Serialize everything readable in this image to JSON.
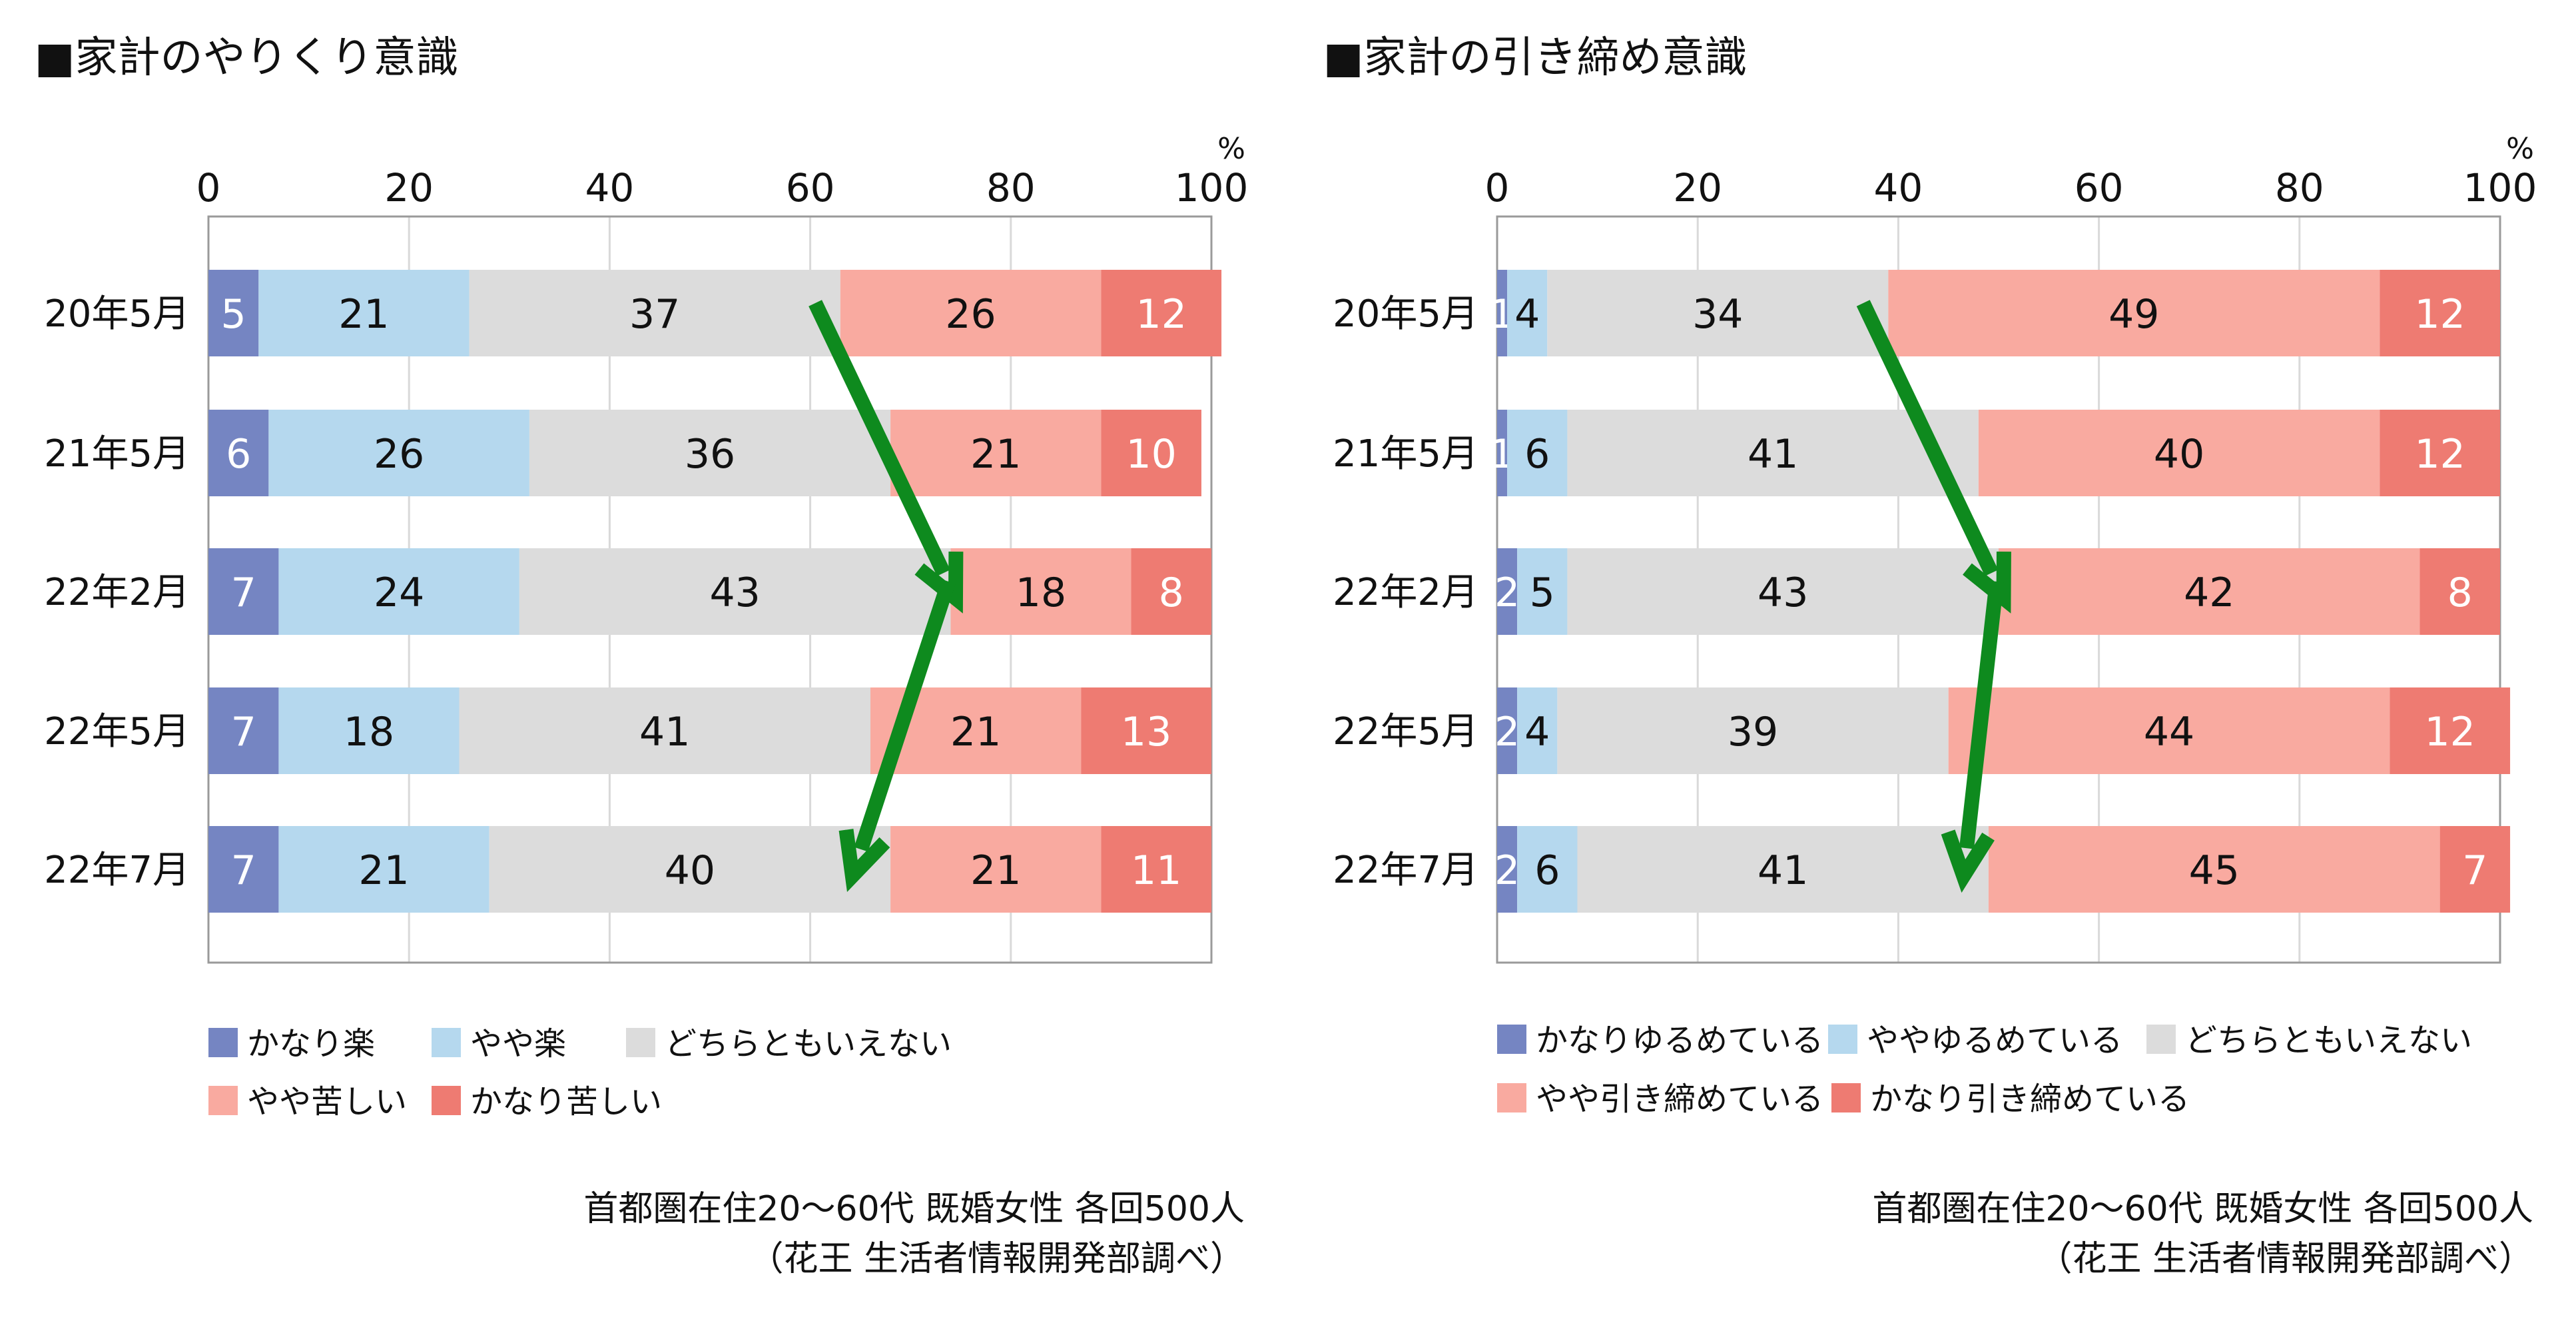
{
  "charts_meta": [
    {
      "title": "■家計のやりくり意識",
      "percent_unit": "%",
      "legend": [
        "かなり楽",
        "やや楽",
        "どちらともいえない",
        "やや苦しい",
        "かなり苦しい"
      ],
      "note_line1": "首都圏在住20～60代 既婚女性 各回500人",
      "note_line2": "（花王 生活者情報開発部調べ）"
    },
    {
      "title": "■家計の引き締め意識",
      "percent_unit": "%",
      "legend": [
        "かなりゆるめている",
        "ややゆるめている",
        "どちらともいえない",
        "やや引き締めている",
        "かなり引き締めている"
      ],
      "note_line1": "首都圏在住20～60代 既婚女性 各回500人",
      "note_line2": "（花王 生活者情報開発部調べ）"
    }
  ],
  "colors": {
    "segments": [
      "#7585c2",
      "#b5d8ee",
      "#dcdcdc",
      "#f9aaa0",
      "#ee7b72"
    ],
    "arrow": "#0e8a1e",
    "axis": "#9a9a9a",
    "grid": "#d9d9d9",
    "text": "#111111",
    "label_on_dark": "#ffffff"
  },
  "chart_data": [
    {
      "type": "bar",
      "orientation": "horizontal",
      "stacked": true,
      "title": "■家計のやりくり意識",
      "xlim": [
        0,
        100
      ],
      "xticks": [
        0,
        20,
        40,
        60,
        80,
        100
      ],
      "unit": "%",
      "grid": true,
      "legend_position": "bottom",
      "categories": [
        "20年5月",
        "21年5月",
        "22年2月",
        "22年5月",
        "22年7月"
      ],
      "series": [
        {
          "name": "かなり楽",
          "values": [
            5,
            6,
            7,
            7,
            7
          ]
        },
        {
          "name": "やや楽",
          "values": [
            21,
            26,
            24,
            18,
            21
          ]
        },
        {
          "name": "どちらともいえない",
          "values": [
            37,
            36,
            43,
            41,
            40
          ]
        },
        {
          "name": "やや苦しい",
          "values": [
            26,
            21,
            18,
            21,
            21
          ]
        },
        {
          "name": "かなり苦しい",
          "values": [
            12,
            10,
            8,
            13,
            11
          ]
        }
      ]
    },
    {
      "type": "bar",
      "orientation": "horizontal",
      "stacked": true,
      "title": "■家計の引き締め意識",
      "xlim": [
        0,
        100
      ],
      "xticks": [
        0,
        20,
        40,
        60,
        80,
        100
      ],
      "unit": "%",
      "grid": true,
      "legend_position": "bottom",
      "categories": [
        "20年5月",
        "21年5月",
        "22年2月",
        "22年5月",
        "22年7月"
      ],
      "series": [
        {
          "name": "かなりゆるめている",
          "values": [
            1,
            1,
            2,
            2,
            2
          ]
        },
        {
          "name": "ややゆるめている",
          "values": [
            4,
            6,
            5,
            4,
            6
          ]
        },
        {
          "name": "どちらともいえない",
          "values": [
            34,
            41,
            43,
            39,
            41
          ]
        },
        {
          "name": "やや引き締めている",
          "values": [
            49,
            40,
            42,
            44,
            45
          ]
        },
        {
          "name": "かなり引き締めている",
          "values": [
            12,
            12,
            8,
            12,
            7
          ]
        }
      ]
    }
  ]
}
